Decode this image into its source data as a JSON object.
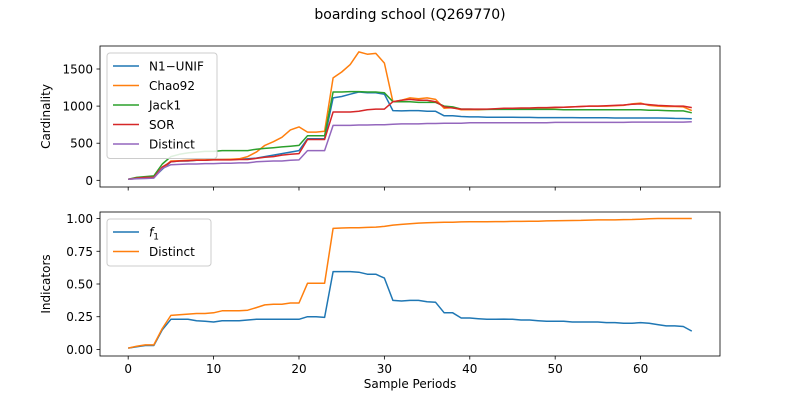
{
  "figure_title": "boarding school (Q269770)",
  "chart_data": [
    {
      "type": "line",
      "ylabel": "Cardinality",
      "xlabel": "",
      "xlim": [
        -3.3,
        69.3
      ],
      "ylim": [
        -90,
        1810
      ],
      "x_ticks": [
        0,
        10,
        20,
        30,
        40,
        50,
        60
      ],
      "x_tick_labels_visible": false,
      "y_ticks": [
        0,
        500,
        1000,
        1500
      ],
      "y_tick_labels": [
        "0",
        "500",
        "1000",
        "1500"
      ],
      "legend_position": "upper left",
      "grid": false,
      "x": [
        0,
        1,
        2,
        3,
        4,
        5,
        6,
        7,
        8,
        9,
        10,
        11,
        12,
        13,
        14,
        15,
        16,
        17,
        18,
        19,
        20,
        21,
        22,
        23,
        24,
        25,
        26,
        27,
        28,
        29,
        30,
        31,
        32,
        33,
        34,
        35,
        36,
        37,
        38,
        39,
        40,
        41,
        42,
        43,
        44,
        45,
        46,
        47,
        48,
        49,
        50,
        51,
        52,
        53,
        54,
        55,
        56,
        57,
        58,
        59,
        60,
        61,
        62,
        63,
        64,
        65,
        66
      ],
      "series": [
        {
          "name": "N1−UNIF",
          "color": "#1f77b4",
          "values": [
            15,
            25,
            35,
            40,
            150,
            250,
            260,
            260,
            270,
            270,
            280,
            280,
            280,
            285,
            290,
            300,
            320,
            340,
            360,
            380,
            400,
            560,
            560,
            560,
            1110,
            1130,
            1160,
            1190,
            1180,
            1180,
            1160,
            940,
            935,
            940,
            940,
            930,
            930,
            870,
            870,
            860,
            855,
            855,
            850,
            850,
            850,
            850,
            848,
            848,
            845,
            845,
            845,
            845,
            845,
            843,
            843,
            843,
            843,
            840,
            840,
            840,
            840,
            840,
            840,
            838,
            835,
            833,
            830
          ]
        },
        {
          "name": "Chao92",
          "color": "#ff7f0e",
          "values": [
            15,
            25,
            35,
            40,
            160,
            260,
            265,
            270,
            275,
            275,
            280,
            280,
            285,
            290,
            320,
            380,
            470,
            520,
            580,
            680,
            720,
            650,
            650,
            660,
            1380,
            1460,
            1560,
            1730,
            1700,
            1710,
            1580,
            1060,
            1080,
            1110,
            1100,
            1110,
            1090,
            970,
            980,
            950,
            950,
            950,
            955,
            960,
            960,
            965,
            970,
            970,
            975,
            975,
            980,
            985,
            990,
            995,
            1000,
            1000,
            1000,
            1005,
            1010,
            1030,
            1040,
            1010,
            1000,
            995,
            995,
            990,
            940
          ]
        },
        {
          "name": "Jack1",
          "color": "#2ca02c",
          "values": [
            15,
            40,
            50,
            60,
            220,
            320,
            350,
            370,
            380,
            390,
            390,
            400,
            400,
            400,
            400,
            420,
            430,
            440,
            450,
            460,
            470,
            600,
            600,
            600,
            1190,
            1190,
            1195,
            1195,
            1190,
            1190,
            1180,
            1060,
            1060,
            1060,
            1050,
            1050,
            1050,
            1000,
            990,
            960,
            960,
            955,
            955,
            955,
            955,
            955,
            955,
            955,
            955,
            955,
            955,
            950,
            950,
            950,
            950,
            950,
            950,
            950,
            950,
            950,
            950,
            945,
            945,
            940,
            935,
            935,
            910
          ]
        },
        {
          "name": "SOR",
          "color": "#d62728",
          "values": [
            15,
            30,
            40,
            40,
            180,
            250,
            260,
            265,
            270,
            270,
            275,
            275,
            275,
            280,
            280,
            295,
            310,
            320,
            340,
            350,
            360,
            550,
            550,
            550,
            920,
            920,
            920,
            930,
            950,
            960,
            960,
            1060,
            1080,
            1090,
            1080,
            1080,
            1060,
            990,
            975,
            960,
            960,
            960,
            960,
            965,
            970,
            970,
            975,
            975,
            980,
            980,
            985,
            985,
            990,
            995,
            1000,
            1000,
            1005,
            1010,
            1015,
            1025,
            1030,
            1020,
            1010,
            1005,
            1000,
            1000,
            980
          ]
        },
        {
          "name": "Distinct",
          "color": "#9467bd",
          "values": [
            15,
            20,
            25,
            30,
            160,
            210,
            215,
            220,
            220,
            225,
            225,
            230,
            230,
            235,
            235,
            250,
            255,
            260,
            260,
            270,
            275,
            400,
            400,
            400,
            740,
            740,
            740,
            745,
            745,
            750,
            750,
            755,
            760,
            760,
            760,
            765,
            765,
            770,
            770,
            770,
            775,
            775,
            775,
            775,
            775,
            775,
            775,
            775,
            775,
            775,
            780,
            780,
            780,
            780,
            780,
            780,
            780,
            780,
            780,
            785,
            785,
            785,
            785,
            785,
            785,
            785,
            790
          ]
        }
      ]
    },
    {
      "type": "line",
      "ylabel": "Indicators",
      "xlabel": "Sample Periods",
      "xlim": [
        -3.3,
        69.3
      ],
      "ylim": [
        -0.05,
        1.05
      ],
      "x_ticks": [
        0,
        10,
        20,
        30,
        40,
        50,
        60
      ],
      "x_tick_labels": [
        "0",
        "10",
        "20",
        "30",
        "40",
        "50",
        "60"
      ],
      "y_ticks": [
        0,
        0.25,
        0.5,
        0.75,
        1.0
      ],
      "y_tick_labels": [
        "0.00",
        "0.25",
        "0.50",
        "0.75",
        "1.00"
      ],
      "legend_position": "upper left",
      "grid": false,
      "x": [
        0,
        1,
        2,
        3,
        4,
        5,
        6,
        7,
        8,
        9,
        10,
        11,
        12,
        13,
        14,
        15,
        16,
        17,
        18,
        19,
        20,
        21,
        22,
        23,
        24,
        25,
        26,
        27,
        28,
        29,
        30,
        31,
        32,
        33,
        34,
        35,
        36,
        37,
        38,
        39,
        40,
        41,
        42,
        43,
        44,
        45,
        46,
        47,
        48,
        49,
        50,
        51,
        52,
        53,
        54,
        55,
        56,
        57,
        58,
        59,
        60,
        61,
        62,
        63,
        64,
        65,
        66
      ],
      "series": [
        {
          "name": "f",
          "name_subscript": "1",
          "color": "#1f77b4",
          "values": [
            0.01,
            0.02,
            0.03,
            0.03,
            0.15,
            0.23,
            0.23,
            0.23,
            0.22,
            0.215,
            0.21,
            0.22,
            0.22,
            0.22,
            0.225,
            0.23,
            0.23,
            0.23,
            0.23,
            0.23,
            0.23,
            0.25,
            0.25,
            0.245,
            0.595,
            0.595,
            0.595,
            0.59,
            0.575,
            0.575,
            0.545,
            0.375,
            0.37,
            0.375,
            0.375,
            0.365,
            0.36,
            0.28,
            0.28,
            0.24,
            0.24,
            0.235,
            0.23,
            0.23,
            0.232,
            0.23,
            0.225,
            0.225,
            0.22,
            0.215,
            0.215,
            0.215,
            0.21,
            0.21,
            0.21,
            0.21,
            0.205,
            0.205,
            0.2,
            0.2,
            0.205,
            0.2,
            0.19,
            0.18,
            0.18,
            0.175,
            0.14
          ]
        },
        {
          "name": "Distinct",
          "color": "#ff7f0e",
          "values": [
            0.01,
            0.025,
            0.035,
            0.035,
            0.16,
            0.26,
            0.265,
            0.27,
            0.275,
            0.275,
            0.28,
            0.295,
            0.295,
            0.295,
            0.3,
            0.32,
            0.34,
            0.345,
            0.345,
            0.355,
            0.355,
            0.505,
            0.505,
            0.505,
            0.925,
            0.928,
            0.93,
            0.93,
            0.932,
            0.935,
            0.94,
            0.95,
            0.955,
            0.96,
            0.965,
            0.968,
            0.97,
            0.972,
            0.972,
            0.974,
            0.975,
            0.975,
            0.976,
            0.977,
            0.977,
            0.978,
            0.978,
            0.98,
            0.98,
            0.982,
            0.983,
            0.984,
            0.985,
            0.986,
            0.988,
            0.99,
            0.99,
            0.99,
            0.992,
            0.993,
            0.995,
            0.998,
            1.0,
            1.0,
            1.0,
            1.0,
            1.0
          ]
        }
      ]
    }
  ]
}
